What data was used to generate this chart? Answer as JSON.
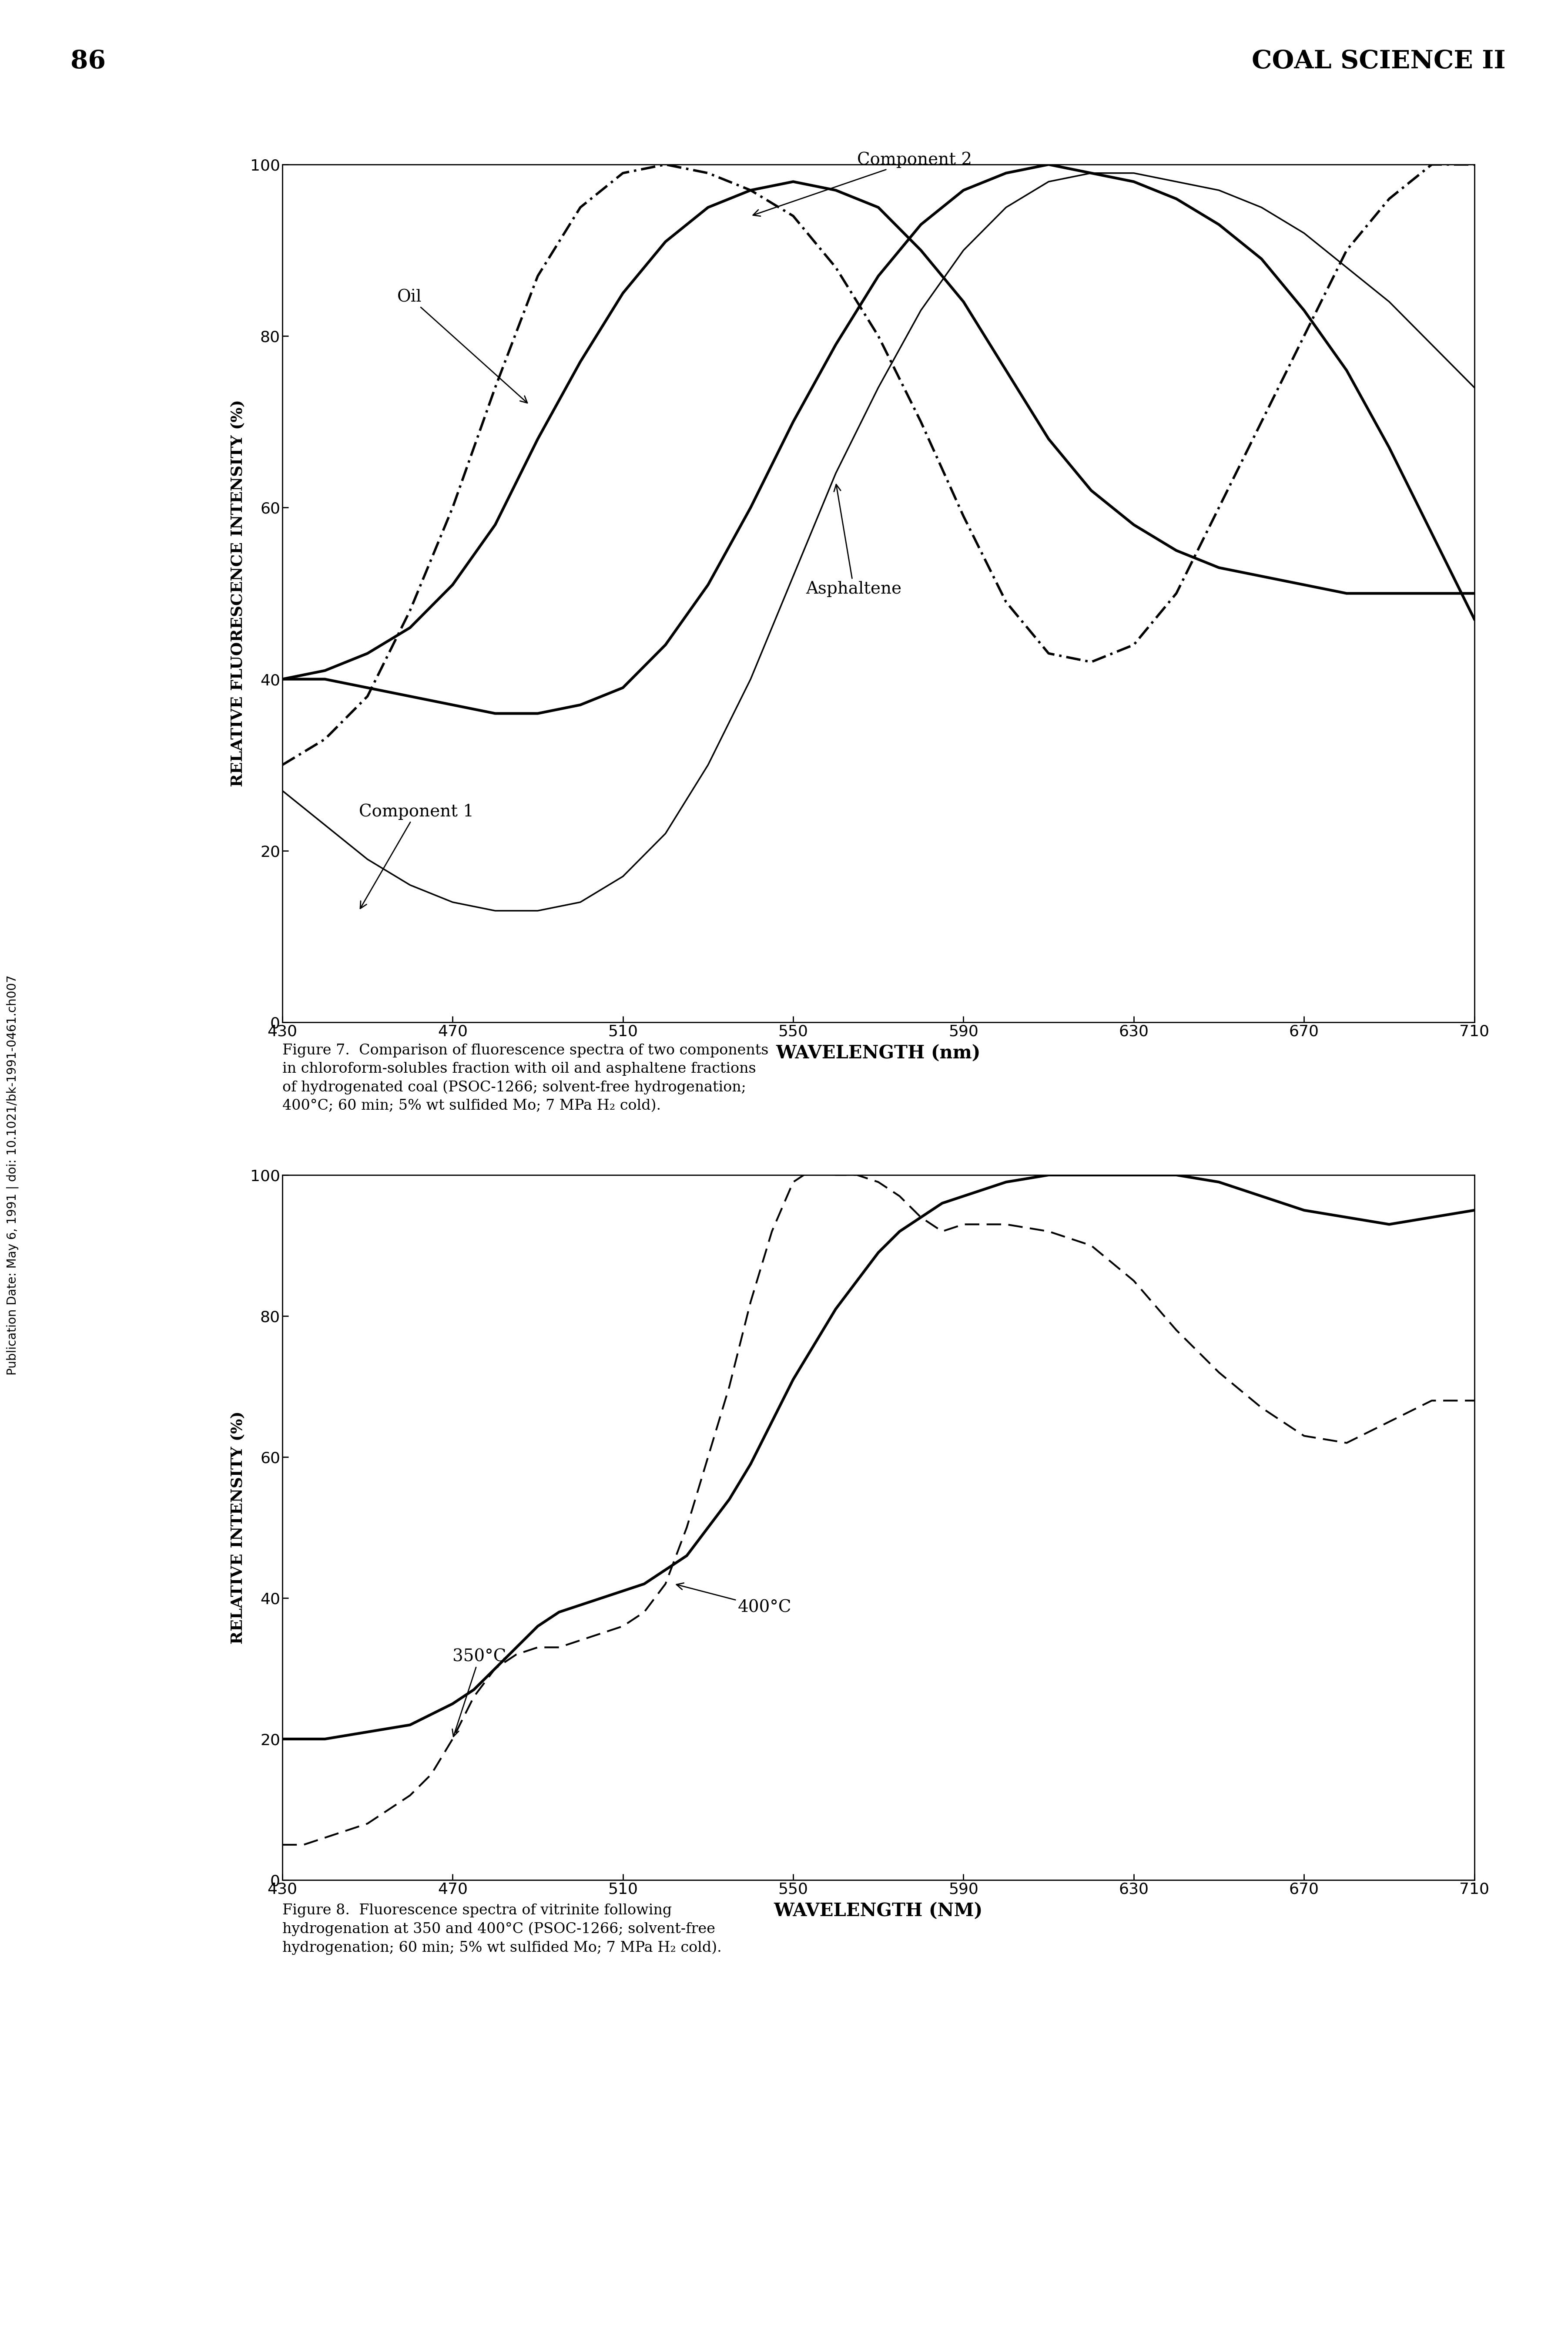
{
  "page_number": "86",
  "page_header": "COAL SCIENCE II",
  "sidebar_text": "Publication Date: May 6, 1991 | doi: 10.1021/bk-1991-0461.ch007",
  "figure1": {
    "xlabel": "WAVELENGTH (nm)",
    "ylabel": "RELATIVE FLUORESCENCE INTENSITY (%)",
    "xlim": [
      430,
      710
    ],
    "ylim": [
      0,
      100
    ],
    "xticks": [
      430,
      470,
      510,
      550,
      590,
      630,
      670,
      710
    ],
    "yticks": [
      0,
      20,
      40,
      60,
      80,
      100
    ],
    "caption_line1": "Figure 7.  Comparison of fluorescence spectra of two components",
    "caption_line2": "in chloroform-solubles fraction with oil and asphaltene fractions",
    "caption_line3": "of hydrogenated coal (PSOC-1266; solvent-free hydrogenation;",
    "caption_line4": "400°C; 60 min; 5% wt sulfided Mo; 7 MPa H₂ cold).",
    "component2_x": [
      430,
      440,
      450,
      460,
      470,
      480,
      490,
      500,
      510,
      520,
      530,
      540,
      550,
      560,
      570,
      580,
      590,
      600,
      610,
      620,
      630,
      640,
      650,
      660,
      670,
      680,
      690,
      700,
      710
    ],
    "component2_y": [
      30,
      33,
      38,
      48,
      60,
      74,
      87,
      95,
      99,
      100,
      99,
      97,
      94,
      88,
      80,
      70,
      59,
      49,
      43,
      42,
      44,
      50,
      60,
      70,
      80,
      90,
      96,
      100,
      100
    ],
    "oil_x": [
      430,
      440,
      450,
      460,
      470,
      480,
      490,
      500,
      510,
      520,
      530,
      540,
      550,
      560,
      570,
      580,
      590,
      600,
      610,
      620,
      630,
      640,
      650,
      660,
      670,
      680,
      690,
      700,
      710
    ],
    "oil_y": [
      40,
      41,
      43,
      46,
      51,
      58,
      68,
      77,
      85,
      91,
      95,
      97,
      98,
      97,
      95,
      90,
      84,
      76,
      68,
      62,
      58,
      55,
      53,
      52,
      51,
      50,
      50,
      50,
      50
    ],
    "asphaltene_x": [
      430,
      440,
      450,
      460,
      470,
      480,
      490,
      500,
      510,
      520,
      530,
      540,
      550,
      560,
      570,
      580,
      590,
      600,
      610,
      620,
      630,
      640,
      650,
      660,
      670,
      680,
      690,
      700,
      710
    ],
    "asphaltene_y": [
      40,
      40,
      39,
      38,
      37,
      36,
      36,
      37,
      39,
      44,
      51,
      60,
      70,
      79,
      87,
      93,
      97,
      99,
      100,
      99,
      98,
      96,
      93,
      89,
      83,
      76,
      67,
      57,
      47
    ],
    "component1_x": [
      430,
      440,
      450,
      460,
      470,
      480,
      490,
      500,
      510,
      520,
      530,
      540,
      550,
      560,
      570,
      580,
      590,
      600,
      610,
      620,
      630,
      640,
      650,
      660,
      670,
      680,
      690,
      700,
      710
    ],
    "component1_y": [
      27,
      23,
      19,
      16,
      14,
      13,
      13,
      14,
      17,
      22,
      30,
      40,
      52,
      64,
      74,
      83,
      90,
      95,
      98,
      99,
      99,
      98,
      97,
      95,
      92,
      88,
      84,
      79,
      74
    ]
  },
  "figure2": {
    "xlabel": "WAVELENGTH (NM)",
    "ylabel": "RELATIVE INTENSITY (%)",
    "xlim": [
      430,
      710
    ],
    "ylim": [
      0,
      100
    ],
    "xticks": [
      430,
      470,
      510,
      550,
      590,
      630,
      670,
      710
    ],
    "yticks": [
      0,
      20,
      40,
      60,
      80,
      100
    ],
    "caption_line1": "Figure 8.  Fluorescence spectra of vitrinite following",
    "caption_line2": "hydrogenation at 350 and 400°C (PSOC-1266; solvent-free",
    "caption_line3": "hydrogenation; 60 min; 5% wt sulfided Mo; 7 MPa H₂ cold).",
    "curve400_x": [
      430,
      440,
      450,
      460,
      470,
      475,
      480,
      485,
      490,
      495,
      500,
      505,
      510,
      515,
      520,
      525,
      530,
      535,
      540,
      545,
      550,
      555,
      560,
      565,
      570,
      575,
      580,
      585,
      590,
      595,
      600,
      610,
      620,
      630,
      640,
      650,
      660,
      670,
      680,
      690,
      700,
      710
    ],
    "curve400_y": [
      20,
      20,
      21,
      22,
      25,
      27,
      30,
      33,
      36,
      38,
      39,
      40,
      41,
      42,
      44,
      46,
      50,
      54,
      59,
      65,
      71,
      76,
      81,
      85,
      89,
      92,
      94,
      96,
      97,
      98,
      99,
      100,
      100,
      100,
      100,
      99,
      97,
      95,
      94,
      93,
      94,
      95
    ],
    "curve350_x": [
      430,
      435,
      440,
      445,
      450,
      455,
      460,
      465,
      470,
      475,
      480,
      485,
      490,
      495,
      500,
      505,
      510,
      515,
      520,
      525,
      530,
      535,
      540,
      545,
      550,
      555,
      560,
      565,
      570,
      575,
      580,
      585,
      590,
      600,
      610,
      620,
      630,
      640,
      650,
      660,
      670,
      680,
      690,
      700,
      710
    ],
    "curve350_y": [
      5,
      5,
      6,
      7,
      8,
      10,
      12,
      15,
      20,
      26,
      30,
      32,
      33,
      33,
      34,
      35,
      36,
      38,
      42,
      50,
      60,
      70,
      82,
      92,
      99,
      101,
      100,
      100,
      99,
      97,
      94,
      92,
      93,
      93,
      92,
      90,
      85,
      78,
      72,
      67,
      63,
      62,
      65,
      68,
      68
    ]
  },
  "background_color": "#ffffff",
  "text_color": "#000000"
}
